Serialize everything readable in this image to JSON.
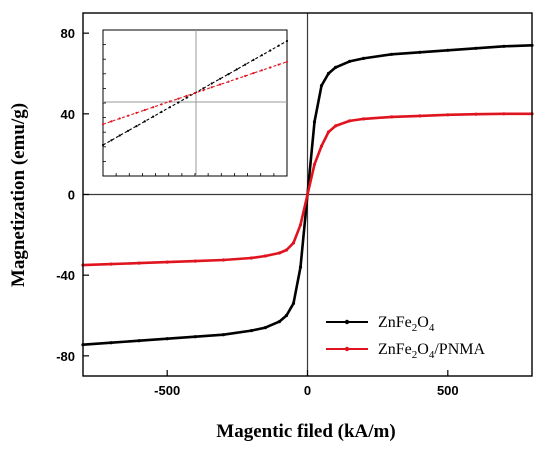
{
  "chart_data": {
    "type": "line",
    "xlabel": "Magentic filed (kA/m)",
    "ylabel": "Magnetization (emu/g)",
    "xlim": [
      -800,
      800
    ],
    "ylim": [
      -90,
      90
    ],
    "xticks": [
      -500,
      0,
      500
    ],
    "xtick_labels": [
      "-500",
      "0",
      "500"
    ],
    "yticks": [
      -80,
      -40,
      0,
      40,
      80
    ],
    "ytick_labels": [
      "-80",
      "-40",
      "0",
      "40",
      "80"
    ],
    "grid": false,
    "legend_position": "bottom-right",
    "x": [
      -800,
      -700,
      -600,
      -500,
      -400,
      -300,
      -200,
      -150,
      -100,
      -75,
      -50,
      -25,
      0,
      25,
      50,
      75,
      100,
      150,
      200,
      300,
      400,
      500,
      600,
      700,
      800
    ],
    "series": [
      {
        "name": "ZnFe2O4",
        "name_parts": {
          "a": "ZnFe",
          "a_sub": "2",
          "b": "O",
          "b_sub": "4",
          "suffix": ""
        },
        "color": "#000000",
        "values": [
          -74.5,
          -73.5,
          -72.5,
          -71.5,
          -70.5,
          -69.5,
          -67.5,
          -66,
          -63,
          -60,
          -54,
          -36,
          0,
          36,
          54,
          60,
          63,
          66,
          67.5,
          69.5,
          70.5,
          71.5,
          72.5,
          73.5,
          74
        ]
      },
      {
        "name": "ZnFe2O4/PNMA",
        "name_parts": {
          "a": "ZnFe",
          "a_sub": "2",
          "b": "O",
          "b_sub": "4",
          "suffix": "/PNMA"
        },
        "color": "#e0141e",
        "values": [
          -35,
          -34.5,
          -34,
          -33.5,
          -33,
          -32.5,
          -31.5,
          -30.5,
          -29,
          -27.5,
          -24,
          -15,
          0,
          15,
          24,
          31,
          34,
          36.5,
          37.5,
          38.5,
          39,
          39.5,
          39.8,
          40,
          40
        ]
      }
    ],
    "inset": {
      "x": [
        -1,
        1
      ],
      "series": [
        {
          "name": "ZnFe2O4",
          "color": "#000000",
          "values": [
            -1,
            1
          ]
        },
        {
          "name": "ZnFe2O4/PNMA",
          "color": "#e0141e",
          "values": [
            -0.6,
            0.6
          ]
        }
      ]
    }
  }
}
